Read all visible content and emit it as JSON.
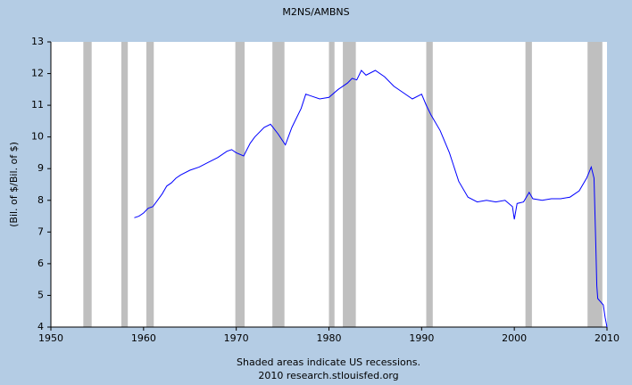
{
  "chart_data": {
    "type": "line",
    "title": "M2NS/AMBNS",
    "y_label": "(Bil. of $/Bil. of $)",
    "footer": [
      "Shaded areas indicate US recessions.",
      "2010 research.stlouisfed.org"
    ],
    "xlim": [
      1950,
      2010
    ],
    "xticks": [
      1950,
      1960,
      1970,
      1980,
      1990,
      2000,
      2010
    ],
    "ylim": [
      4,
      13
    ],
    "yticks": [
      4,
      5,
      6,
      7,
      8,
      9,
      10,
      11,
      12,
      13
    ],
    "grid": false,
    "recession_color": "#bfbfbf",
    "recessions": [
      [
        1953.5,
        1954.4
      ],
      [
        1957.6,
        1958.3
      ],
      [
        1960.3,
        1961.1
      ],
      [
        1969.9,
        1970.9
      ],
      [
        1973.9,
        1975.2
      ],
      [
        1980.0,
        1980.6
      ],
      [
        1981.5,
        1982.9
      ],
      [
        1990.5,
        1991.2
      ],
      [
        2001.2,
        2001.9
      ],
      [
        2007.9,
        2009.5
      ]
    ],
    "series": [
      {
        "name": "M2NS/AMBNS",
        "color": "#0000ff",
        "x": [
          1959.0,
          1959.5,
          1960.0,
          1960.5,
          1961.0,
          1961.5,
          1962.0,
          1962.5,
          1963.0,
          1963.5,
          1964,
          1965,
          1966,
          1967,
          1968,
          1969,
          1969.5,
          1970,
          1970.8,
          1971.5,
          1972,
          1973,
          1973.7,
          1974.5,
          1975.3,
          1976,
          1977,
          1977.5,
          1978,
          1979,
          1980,
          1981,
          1982,
          1982.5,
          1983,
          1983.5,
          1984,
          1985,
          1986,
          1987,
          1988,
          1989,
          1990,
          1990.5,
          1991,
          1992,
          1993,
          1994,
          1995,
          1996,
          1997,
          1998,
          1999,
          1999.8,
          2000,
          2000.3,
          2001,
          2001.6,
          2002,
          2003,
          2004,
          2005,
          2006,
          2007,
          2007.8,
          2008.3,
          2008.6,
          2008.8,
          2008.9,
          2009.0,
          2009.3,
          2009.6,
          2009.8,
          2010
        ],
        "values": [
          7.45,
          7.5,
          7.6,
          7.75,
          7.8,
          8.0,
          8.2,
          8.45,
          8.55,
          8.7,
          8.8,
          8.95,
          9.05,
          9.2,
          9.35,
          9.55,
          9.6,
          9.5,
          9.4,
          9.8,
          10.0,
          10.3,
          10.4,
          10.1,
          9.75,
          10.3,
          10.9,
          11.35,
          11.3,
          11.2,
          11.25,
          11.5,
          11.7,
          11.85,
          11.8,
          12.1,
          11.95,
          12.1,
          11.9,
          11.6,
          11.4,
          11.2,
          11.35,
          11.0,
          10.7,
          10.2,
          9.5,
          8.6,
          8.1,
          7.95,
          8.0,
          7.95,
          8.0,
          7.8,
          7.4,
          7.9,
          7.95,
          8.25,
          8.05,
          8.0,
          8.05,
          8.05,
          8.1,
          8.3,
          8.7,
          9.05,
          8.7,
          6.5,
          5.3,
          4.9,
          4.8,
          4.7,
          4.3,
          4.0
        ]
      }
    ]
  }
}
